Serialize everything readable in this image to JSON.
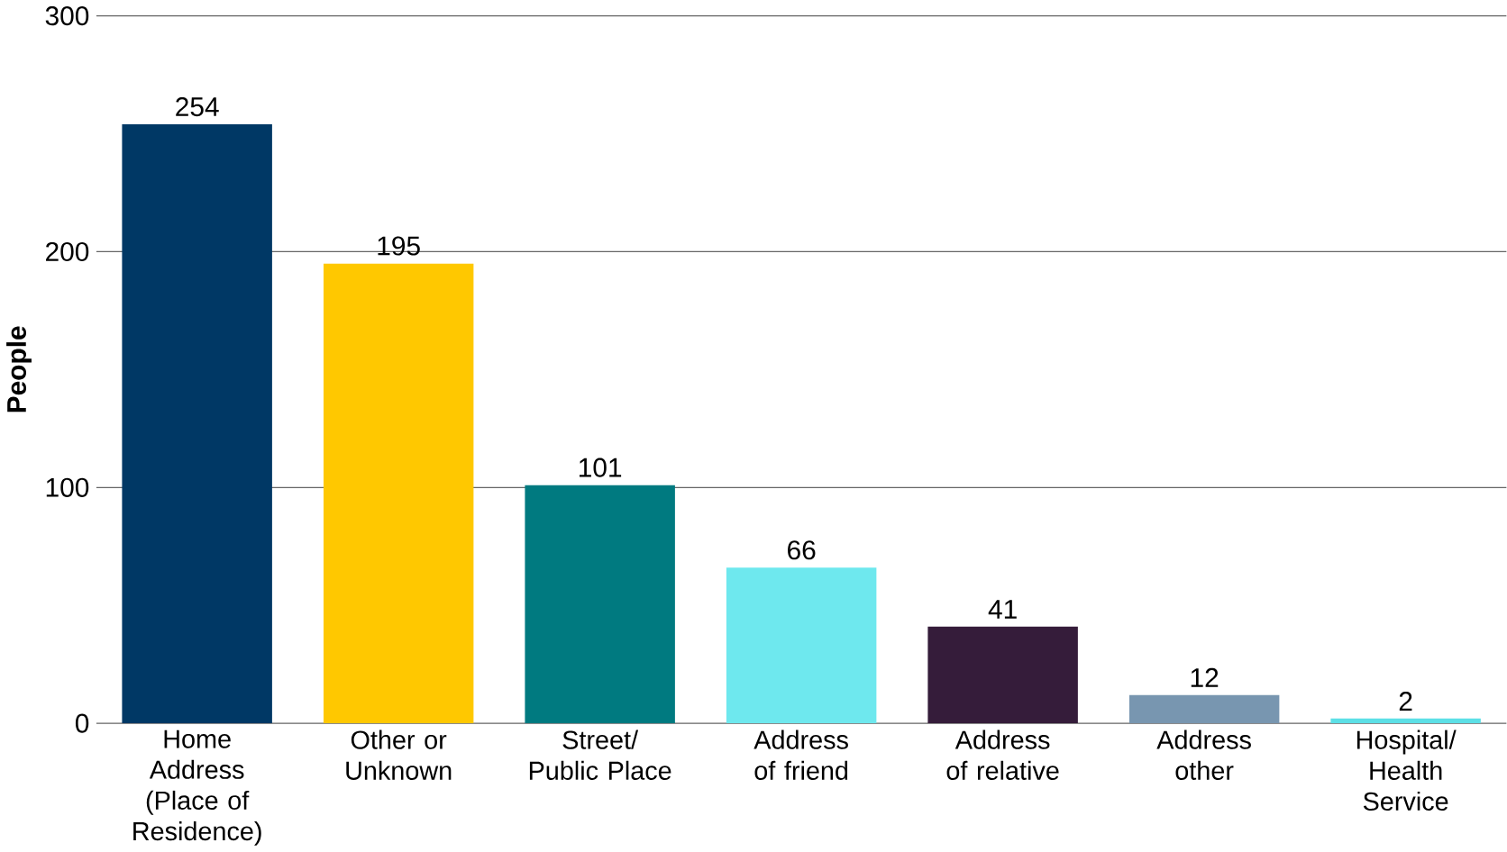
{
  "chart_data": {
    "type": "bar",
    "ylabel": "People",
    "categories": [
      "Home Address (Place of Residence)",
      "Other or Unknown",
      "Street/ Public Place",
      "Address of friend",
      "Address of relative",
      "Address other",
      "Hospital/ Health Service"
    ],
    "values": [
      254,
      195,
      101,
      66,
      41,
      12,
      2
    ],
    "colors": [
      "#003865",
      "#ffc800",
      "#007a80",
      "#6ee8ee",
      "#351c3a",
      "#7896b0",
      "#5ce0e6"
    ],
    "ylim": [
      0,
      300
    ],
    "yticks": [
      0,
      100,
      200,
      300
    ],
    "grid": "y",
    "data_labels": true
  }
}
